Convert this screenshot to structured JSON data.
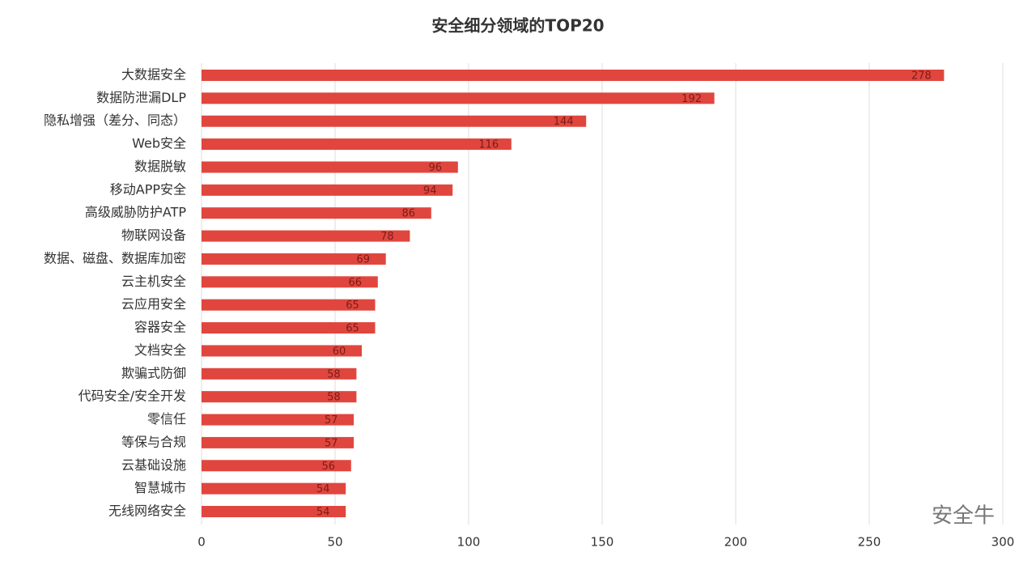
{
  "chart_data": {
    "type": "bar",
    "orientation": "horizontal",
    "title": "安全细分领域的TOP20",
    "categories": [
      "大数据安全",
      "数据防泄漏DLP",
      "隐私增强（差分、同态）",
      "Web安全",
      "数据脱敏",
      "移动APP安全",
      "高级威胁防护ATP",
      "物联网设备",
      "数据、磁盘、数据库加密",
      "云主机安全",
      "云应用安全",
      "容器安全",
      "文档安全",
      "欺骗式防御",
      "代码安全/安全开发",
      "零信任",
      "等保与合规",
      "云基础设施",
      "智慧城市",
      "无线网络安全"
    ],
    "values": [
      278,
      192,
      144,
      116,
      96,
      94,
      86,
      78,
      69,
      66,
      65,
      65,
      60,
      58,
      58,
      57,
      57,
      56,
      54,
      54
    ],
    "color": "#e0463e",
    "xlim": [
      0,
      300
    ],
    "xticks": [
      0,
      50,
      100,
      150,
      200,
      250,
      300
    ],
    "grid": true,
    "watermark": "安全牛"
  }
}
